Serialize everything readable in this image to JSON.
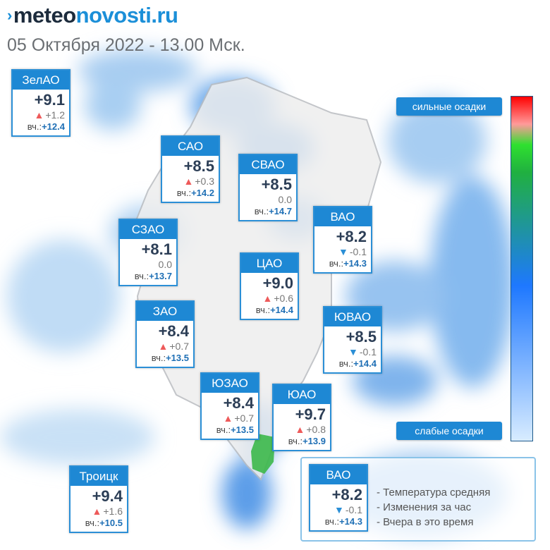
{
  "header": {
    "logo_mark": "›",
    "logo_main": "meteo",
    "logo_accent": "novosti.ru",
    "datetime": "05 Октября 2022 - 13.00 Мск."
  },
  "scale": {
    "high_label": "сильные осадки",
    "low_label": "слабые осадки"
  },
  "yesterday_prefix": "вч.:",
  "districts": [
    {
      "name": "ЗелАО",
      "temp": "+9.1",
      "trend": "up",
      "change": "+1.2",
      "yesterday": "+12.4"
    },
    {
      "name": "САО",
      "temp": "+8.5",
      "trend": "up",
      "change": "+0.3",
      "yesterday": "+14.2"
    },
    {
      "name": "СВАО",
      "temp": "+8.5",
      "trend": "none",
      "change": "0.0",
      "yesterday": "+14.7"
    },
    {
      "name": "ВАО",
      "temp": "+8.2",
      "trend": "down",
      "change": "-0.1",
      "yesterday": "+14.3"
    },
    {
      "name": "СЗАО",
      "temp": "+8.1",
      "trend": "none",
      "change": "0.0",
      "yesterday": "+13.7"
    },
    {
      "name": "ЦАО",
      "temp": "+9.0",
      "trend": "up",
      "change": "+0.6",
      "yesterday": "+14.4"
    },
    {
      "name": "ЗАО",
      "temp": "+8.4",
      "trend": "up",
      "change": "+0.7",
      "yesterday": "+13.5"
    },
    {
      "name": "ЮВАО",
      "temp": "+8.5",
      "trend": "down",
      "change": "-0.1",
      "yesterday": "+14.4"
    },
    {
      "name": "ЮЗАО",
      "temp": "+8.4",
      "trend": "up",
      "change": "+0.7",
      "yesterday": "+13.5"
    },
    {
      "name": "ЮАО",
      "temp": "+9.7",
      "trend": "up",
      "change": "+0.8",
      "yesterday": "+13.9"
    },
    {
      "name": "Троицк",
      "temp": "+9.4",
      "trend": "up",
      "change": "+1.6",
      "yesterday": "+10.5"
    }
  ],
  "legend": {
    "sample": {
      "name": "ВАО",
      "temp": "+8.2",
      "trend": "down",
      "change": "-0.1",
      "yesterday": "+14.3"
    },
    "line_temp": "- Температура средняя",
    "line_change": "- Изменения за час",
    "line_yesterday": "- Вчера в это время"
  },
  "colors": {
    "accent": "#1e88d4",
    "trend_up": "#ee5a5a",
    "trend_down": "#2b8fd6",
    "heavy_precip": "#ff0000",
    "light_precip": "#d8ecff"
  }
}
